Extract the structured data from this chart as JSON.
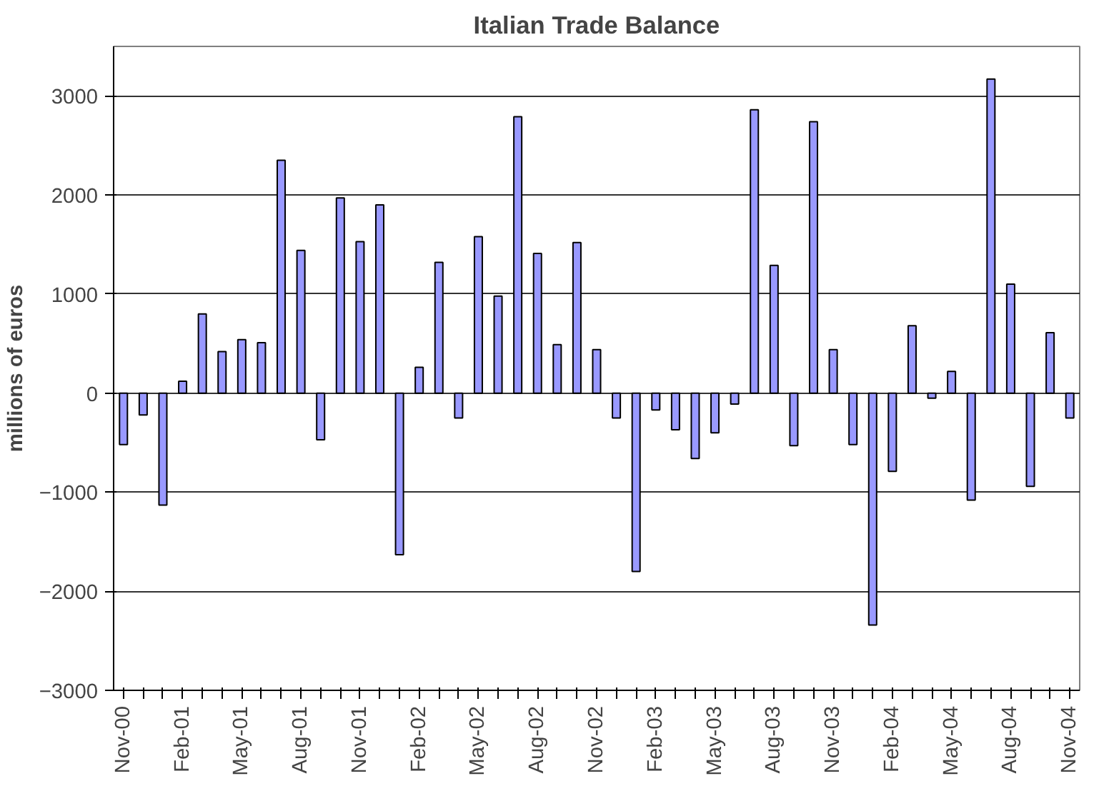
{
  "chart_data": {
    "type": "bar",
    "title": "Italian Trade Balance",
    "ylabel": "millions of euros",
    "categories": [
      "Nov-00",
      null,
      null,
      "Feb-01",
      null,
      null,
      "May-01",
      null,
      null,
      "Aug-01",
      null,
      null,
      "Nov-01",
      null,
      null,
      "Feb-02",
      null,
      null,
      "May-02",
      null,
      null,
      "Aug-02",
      null,
      null,
      "Nov-02",
      null,
      null,
      "Feb-03",
      null,
      null,
      "May-03",
      null,
      null,
      "Aug-03",
      null,
      null,
      "Nov-03",
      null,
      null,
      "Feb-04",
      null,
      null,
      "May-04",
      null,
      null,
      "Aug-04",
      null,
      null,
      "Nov-04"
    ],
    "values": [
      -520,
      -220,
      -1130,
      120,
      800,
      420,
      540,
      510,
      2350,
      1440,
      -470,
      1970,
      1530,
      1900,
      -1630,
      260,
      1320,
      -250,
      1580,
      980,
      2790,
      1410,
      490,
      1520,
      440,
      -250,
      -1800,
      -170,
      -370,
      -660,
      -400,
      -110,
      2860,
      1290,
      -530,
      2740,
      440,
      -520,
      -2340,
      -790,
      680,
      -50,
      220,
      -1080,
      3170,
      1100,
      -940,
      610,
      -250
    ],
    "color": "#9999ff",
    "ylim": [
      -3000,
      3500
    ],
    "yticks": [
      -3000,
      -2000,
      -1000,
      0,
      1000,
      2000,
      3000
    ],
    "grid": "y"
  }
}
